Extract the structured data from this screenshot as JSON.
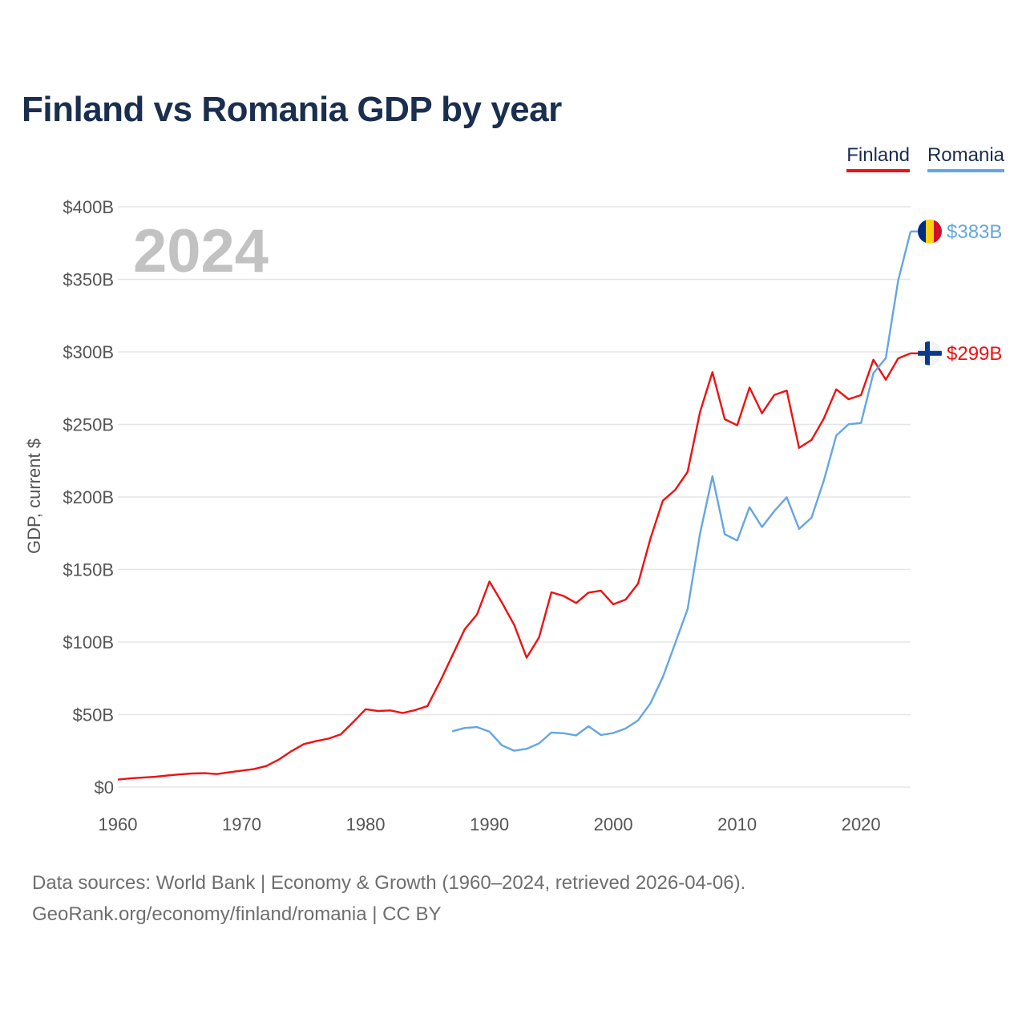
{
  "title": "Finland vs Romania GDP by year",
  "legend": {
    "finland": "Finland",
    "romania": "Romania"
  },
  "colors": {
    "finland": "#ee1111",
    "romania": "#64a6e3",
    "grid": "#e6e6e6",
    "title": "#1a2e4f"
  },
  "source": {
    "line1": "Data sources: World Bank | Economy & Growth (1960–2024, retrieved 2026-04-06).",
    "line2": "GeoRank.org/economy/finland/romania | CC BY"
  },
  "chart_data": {
    "type": "line",
    "title": "Finland vs Romania GDP by year",
    "ylabel": "GDP, current $",
    "xlabel": "",
    "year_label": "2024",
    "xlim": [
      1960,
      2024
    ],
    "ylim": [
      0,
      400
    ],
    "y_unit": "billion USD",
    "x_ticks": [
      "1960",
      "1970",
      "1980",
      "1990",
      "2000",
      "2010",
      "2020"
    ],
    "y_ticks": [
      "$0",
      "$50B",
      "$100B",
      "$150B",
      "$200B",
      "$250B",
      "$300B",
      "$350B",
      "$400B"
    ],
    "series": [
      {
        "name": "Finland",
        "color": "#ee1111",
        "end_label": "$299B",
        "flag_icon": "finland-flag-icon",
        "x": [
          1960,
          1961,
          1962,
          1963,
          1964,
          1965,
          1966,
          1967,
          1968,
          1969,
          1970,
          1971,
          1972,
          1973,
          1974,
          1975,
          1976,
          1977,
          1978,
          1979,
          1980,
          1981,
          1982,
          1983,
          1984,
          1985,
          1986,
          1987,
          1988,
          1989,
          1990,
          1991,
          1992,
          1993,
          1994,
          1995,
          1996,
          1997,
          1998,
          1999,
          2000,
          2001,
          2002,
          2003,
          2004,
          2005,
          2006,
          2007,
          2008,
          2009,
          2010,
          2011,
          2012,
          2013,
          2014,
          2015,
          2016,
          2017,
          2018,
          2019,
          2020,
          2021,
          2022,
          2023,
          2024
        ],
        "values": [
          5.2,
          6.0,
          6.6,
          7.1,
          8.0,
          8.8,
          9.4,
          9.6,
          9.0,
          10.3,
          11.4,
          12.5,
          14.6,
          19.0,
          24.7,
          29.6,
          31.7,
          33.4,
          36.4,
          44.8,
          53.7,
          52.5,
          52.9,
          51.1,
          53.1,
          55.9,
          72.6,
          90.5,
          108.8,
          119.0,
          141.7,
          127.4,
          111.8,
          89.2,
          103.1,
          134.3,
          131.7,
          126.9,
          134.1,
          135.4,
          126.0,
          129.3,
          140.3,
          171.4,
          197.4,
          204.9,
          217.3,
          258.5,
          286.0,
          253.6,
          249.4,
          275.4,
          257.7,
          270.3,
          273.3,
          233.8,
          239.3,
          254.1,
          274.2,
          267.4,
          270.2,
          294.6,
          280.8,
          295.5,
          299.0
        ]
      },
      {
        "name": "Romania",
        "color": "#64a6e3",
        "end_label": "$383B",
        "flag_icon": "romania-flag-icon",
        "x": [
          1987,
          1988,
          1989,
          1990,
          1991,
          1992,
          1993,
          1994,
          1995,
          1996,
          1997,
          1998,
          1999,
          2000,
          2001,
          2002,
          2003,
          2004,
          2005,
          2006,
          2007,
          2008,
          2009,
          2010,
          2011,
          2012,
          2013,
          2014,
          2015,
          2016,
          2017,
          2018,
          2019,
          2020,
          2021,
          2022,
          2023,
          2024
        ],
        "values": [
          38.5,
          40.8,
          41.4,
          38.3,
          28.9,
          25.1,
          26.4,
          30.1,
          37.6,
          37.1,
          35.7,
          42.0,
          35.9,
          37.3,
          40.5,
          46.0,
          57.8,
          75.8,
          99.2,
          122.7,
          174.6,
          214.3,
          174.3,
          170.0,
          193.0,
          179.3,
          190.3,
          199.8,
          178.0,
          185.7,
          211.4,
          242.3,
          250.1,
          251.0,
          285.3,
          295.7,
          349.1,
          383.0
        ]
      }
    ]
  }
}
